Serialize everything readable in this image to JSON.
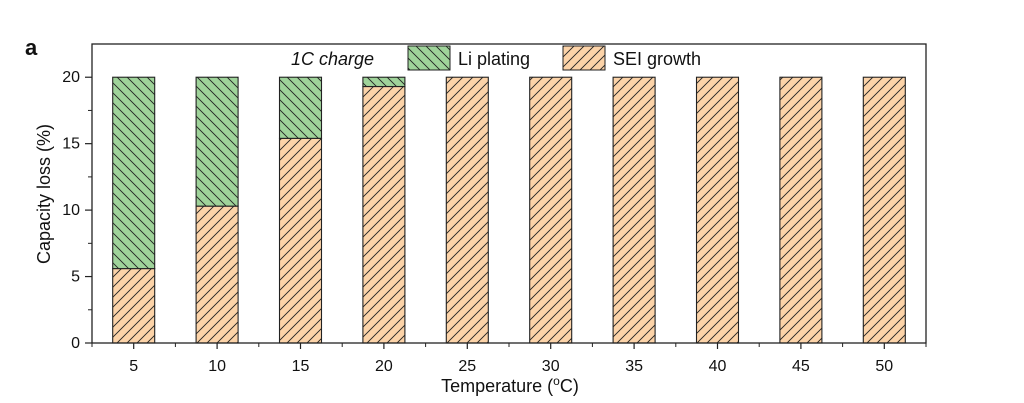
{
  "figure": {
    "panel_label": "a"
  },
  "colors": {
    "li_plating_fill": "#9fd39a",
    "sei_growth_fill": "#fcd3a8",
    "outline": "#222222"
  },
  "chart_data": {
    "type": "bar",
    "stacked": true,
    "categories": [
      "5",
      "10",
      "15",
      "20",
      "25",
      "30",
      "35",
      "40",
      "45",
      "50"
    ],
    "series": [
      {
        "name": "SEI growth",
        "values": [
          5.6,
          10.3,
          15.4,
          19.3,
          20,
          20,
          20,
          20,
          20,
          20
        ]
      },
      {
        "name": "Li plating",
        "values": [
          14.4,
          9.7,
          4.6,
          0.7,
          0,
          0,
          0,
          0,
          0,
          0
        ]
      }
    ],
    "legend_title": "1C charge",
    "legend_placement": "top",
    "xlabel": "Temperature (",
    "xlabel_superscript": "o",
    "xlabel_suffix": "C)",
    "ylabel": "Capacity loss (%)",
    "ylim": [
      0,
      22.5
    ],
    "yticks": [
      0,
      5,
      10,
      15,
      20
    ],
    "grid": false
  }
}
